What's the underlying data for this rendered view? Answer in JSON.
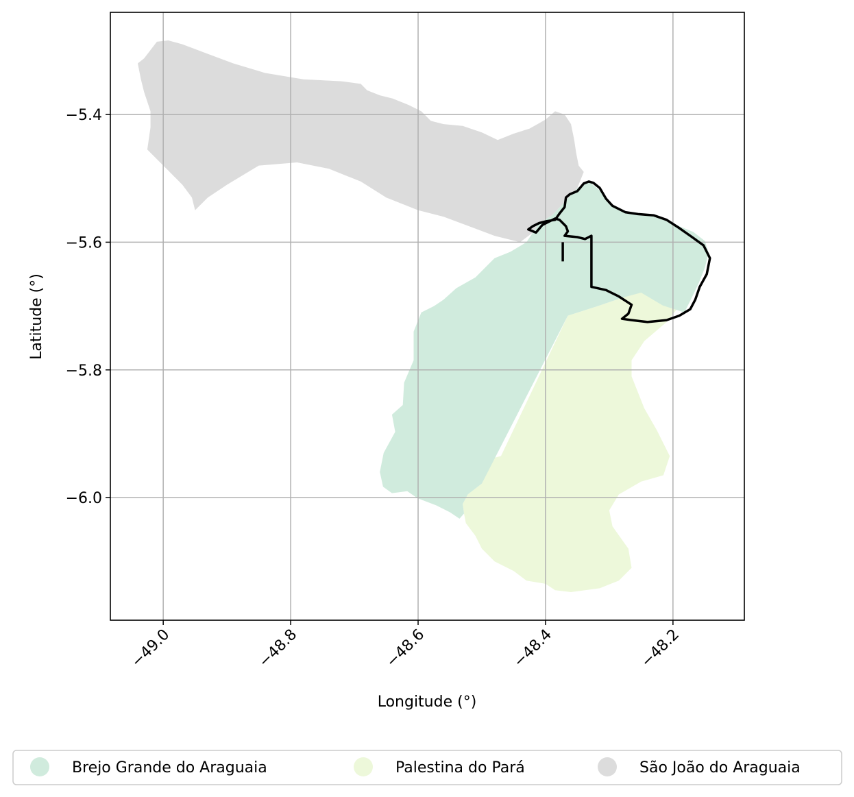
{
  "chart_data": {
    "type": "map",
    "xlabel": "Longitude (°)",
    "ylabel": "Latitude (°)",
    "xlim": [
      -49.083,
      -48.088
    ],
    "ylim": [
      -6.192,
      -5.24
    ],
    "xticks": [
      -49.0,
      -48.8,
      -48.6,
      -48.4,
      -48.2
    ],
    "xtick_labels": [
      "−49.0",
      "−48.8",
      "−48.6",
      "−48.4",
      "−48.2"
    ],
    "yticks": [
      -5.4,
      -5.6,
      -5.8,
      -6.0
    ],
    "ytick_labels": [
      "−5.4",
      "−5.6",
      "−5.8",
      "−6.0"
    ],
    "grid": true,
    "legend_placement": "bottom-center",
    "regions": [
      {
        "name": "Brejo Grande do Araguaia",
        "color": "#d0ebdd",
        "polygon": [
          [
            -48.332,
            -5.505
          ],
          [
            -48.316,
            -5.518
          ],
          [
            -48.303,
            -5.533
          ],
          [
            -48.285,
            -5.549
          ],
          [
            -48.262,
            -5.556
          ],
          [
            -48.238,
            -5.558
          ],
          [
            -48.215,
            -5.565
          ],
          [
            -48.19,
            -5.575
          ],
          [
            -48.168,
            -5.584
          ],
          [
            -48.15,
            -5.598
          ],
          [
            -48.144,
            -5.617
          ],
          [
            -48.15,
            -5.64
          ],
          [
            -48.16,
            -5.665
          ],
          [
            -48.172,
            -5.69
          ],
          [
            -48.182,
            -5.71
          ],
          [
            -48.216,
            -5.699
          ],
          [
            -48.25,
            -5.679
          ],
          [
            -48.28,
            -5.687
          ],
          [
            -48.318,
            -5.7
          ],
          [
            -48.365,
            -5.715
          ],
          [
            -48.5,
            -5.978
          ],
          [
            -48.522,
            -5.995
          ],
          [
            -48.53,
            -6.01
          ],
          [
            -48.528,
            -6.025
          ],
          [
            -48.535,
            -6.033
          ],
          [
            -48.55,
            -6.023
          ],
          [
            -48.572,
            -6.012
          ],
          [
            -48.601,
            -6.001
          ],
          [
            -48.617,
            -5.99
          ],
          [
            -48.641,
            -5.993
          ],
          [
            -48.655,
            -5.983
          ],
          [
            -48.66,
            -5.96
          ],
          [
            -48.654,
            -5.93
          ],
          [
            -48.636,
            -5.897
          ],
          [
            -48.641,
            -5.87
          ],
          [
            -48.624,
            -5.855
          ],
          [
            -48.622,
            -5.82
          ],
          [
            -48.607,
            -5.785
          ],
          [
            -48.607,
            -5.74
          ],
          [
            -48.595,
            -5.71
          ],
          [
            -48.575,
            -5.7
          ],
          [
            -48.56,
            -5.69
          ],
          [
            -48.54,
            -5.672
          ],
          [
            -48.51,
            -5.655
          ],
          [
            -48.495,
            -5.64
          ],
          [
            -48.48,
            -5.625
          ],
          [
            -48.455,
            -5.615
          ],
          [
            -48.43,
            -5.6
          ],
          [
            -48.42,
            -5.585
          ],
          [
            -48.41,
            -5.57
          ],
          [
            -48.39,
            -5.558
          ],
          [
            -48.368,
            -5.535
          ],
          [
            -48.35,
            -5.515
          ]
        ]
      },
      {
        "name": "Palestina do Pará",
        "color": "#edf8da",
        "polygon": [
          [
            -48.365,
            -5.715
          ],
          [
            -48.318,
            -5.7
          ],
          [
            -48.28,
            -5.687
          ],
          [
            -48.248,
            -5.675
          ],
          [
            -48.23,
            -5.68
          ],
          [
            -48.21,
            -5.69
          ],
          [
            -48.19,
            -5.7
          ],
          [
            -48.21,
            -5.725
          ],
          [
            -48.245,
            -5.755
          ],
          [
            -48.265,
            -5.785
          ],
          [
            -48.265,
            -5.81
          ],
          [
            -48.245,
            -5.86
          ],
          [
            -48.225,
            -5.895
          ],
          [
            -48.205,
            -5.935
          ],
          [
            -48.215,
            -5.965
          ],
          [
            -48.25,
            -5.975
          ],
          [
            -48.285,
            -5.995
          ],
          [
            -48.3,
            -6.02
          ],
          [
            -48.295,
            -6.045
          ],
          [
            -48.27,
            -6.08
          ],
          [
            -48.265,
            -6.11
          ],
          [
            -48.285,
            -6.13
          ],
          [
            -48.315,
            -6.142
          ],
          [
            -48.36,
            -6.148
          ],
          [
            -48.385,
            -6.145
          ],
          [
            -48.4,
            -6.135
          ],
          [
            -48.43,
            -6.13
          ],
          [
            -48.45,
            -6.115
          ],
          [
            -48.48,
            -6.1
          ],
          [
            -48.5,
            -6.08
          ],
          [
            -48.51,
            -6.06
          ],
          [
            -48.525,
            -6.04
          ],
          [
            -48.528,
            -6.025
          ],
          [
            -48.53,
            -6.01
          ],
          [
            -48.522,
            -5.995
          ],
          [
            -48.5,
            -5.978
          ],
          [
            -48.493,
            -5.96
          ],
          [
            -48.49,
            -5.94
          ],
          [
            -48.47,
            -5.935
          ]
        ]
      },
      {
        "name": "São João do Araguaia",
        "color": "#dcdcdc",
        "polygon": [
          [
            -49.04,
            -5.32
          ],
          [
            -49.03,
            -5.312
          ],
          [
            -49.01,
            -5.286
          ],
          [
            -48.992,
            -5.284
          ],
          [
            -48.97,
            -5.29
          ],
          [
            -48.93,
            -5.305
          ],
          [
            -48.89,
            -5.32
          ],
          [
            -48.84,
            -5.335
          ],
          [
            -48.78,
            -5.345
          ],
          [
            -48.72,
            -5.348
          ],
          [
            -48.69,
            -5.352
          ],
          [
            -48.68,
            -5.362
          ],
          [
            -48.66,
            -5.37
          ],
          [
            -48.64,
            -5.375
          ],
          [
            -48.615,
            -5.385
          ],
          [
            -48.595,
            -5.395
          ],
          [
            -48.58,
            -5.41
          ],
          [
            -48.56,
            -5.415
          ],
          [
            -48.53,
            -5.418
          ],
          [
            -48.5,
            -5.428
          ],
          [
            -48.475,
            -5.44
          ],
          [
            -48.45,
            -5.43
          ],
          [
            -48.425,
            -5.422
          ],
          [
            -48.4,
            -5.408
          ],
          [
            -48.385,
            -5.395
          ],
          [
            -48.37,
            -5.4
          ],
          [
            -48.36,
            -5.415
          ],
          [
            -48.355,
            -5.44
          ],
          [
            -48.352,
            -5.46
          ],
          [
            -48.348,
            -5.48
          ],
          [
            -48.34,
            -5.49
          ],
          [
            -48.35,
            -5.515
          ],
          [
            -48.368,
            -5.535
          ],
          [
            -48.39,
            -5.558
          ],
          [
            -48.41,
            -5.57
          ],
          [
            -48.42,
            -5.585
          ],
          [
            -48.44,
            -5.6
          ],
          [
            -48.48,
            -5.59
          ],
          [
            -48.52,
            -5.575
          ],
          [
            -48.56,
            -5.56
          ],
          [
            -48.6,
            -5.55
          ],
          [
            -48.65,
            -5.53
          ],
          [
            -48.69,
            -5.505
          ],
          [
            -48.74,
            -5.485
          ],
          [
            -48.79,
            -5.475
          ],
          [
            -48.85,
            -5.48
          ],
          [
            -48.9,
            -5.51
          ],
          [
            -48.93,
            -5.53
          ],
          [
            -48.95,
            -5.55
          ],
          [
            -48.955,
            -5.53
          ],
          [
            -48.97,
            -5.51
          ],
          [
            -48.99,
            -5.49
          ],
          [
            -49.01,
            -5.47
          ],
          [
            -49.025,
            -5.455
          ],
          [
            -49.02,
            -5.42
          ],
          [
            -49.02,
            -5.395
          ],
          [
            -49.03,
            -5.365
          ],
          [
            -49.035,
            -5.345
          ]
        ]
      }
    ],
    "outline": {
      "color": "#000000",
      "polygon": [
        [
          -48.332,
          -5.505
        ],
        [
          -48.34,
          -5.508
        ],
        [
          -48.35,
          -5.52
        ],
        [
          -48.362,
          -5.525
        ],
        [
          -48.368,
          -5.53
        ],
        [
          -48.37,
          -5.545
        ],
        [
          -48.378,
          -5.555
        ],
        [
          -48.385,
          -5.565
        ],
        [
          -48.398,
          -5.567
        ],
        [
          -48.41,
          -5.57
        ],
        [
          -48.42,
          -5.575
        ],
        [
          -48.427,
          -5.58
        ],
        [
          -48.415,
          -5.585
        ],
        [
          -48.405,
          -5.573
        ],
        [
          -48.395,
          -5.568
        ],
        [
          -48.385,
          -5.563
        ],
        [
          -48.378,
          -5.565
        ],
        [
          -48.373,
          -5.57
        ],
        [
          -48.368,
          -5.575
        ],
        [
          -48.365,
          -5.583
        ],
        [
          -48.37,
          -5.59
        ],
        [
          -48.35,
          -5.592
        ],
        [
          -48.338,
          -5.595
        ],
        [
          -48.328,
          -5.59
        ],
        [
          -48.328,
          -5.625
        ],
        [
          -48.328,
          -5.67
        ],
        [
          -48.305,
          -5.675
        ],
        [
          -48.285,
          -5.685
        ],
        [
          -48.265,
          -5.698
        ],
        [
          -48.27,
          -5.712
        ],
        [
          -48.28,
          -5.72
        ],
        [
          -48.265,
          -5.722
        ],
        [
          -48.24,
          -5.725
        ],
        [
          -48.21,
          -5.722
        ],
        [
          -48.19,
          -5.715
        ],
        [
          -48.173,
          -5.705
        ],
        [
          -48.165,
          -5.69
        ],
        [
          -48.158,
          -5.67
        ],
        [
          -48.147,
          -5.65
        ],
        [
          -48.142,
          -5.625
        ],
        [
          -48.152,
          -5.605
        ],
        [
          -48.17,
          -5.592
        ],
        [
          -48.19,
          -5.578
        ],
        [
          -48.21,
          -5.565
        ],
        [
          -48.23,
          -5.558
        ],
        [
          -48.255,
          -5.556
        ],
        [
          -48.275,
          -5.553
        ],
        [
          -48.295,
          -5.543
        ],
        [
          -48.305,
          -5.532
        ],
        [
          -48.315,
          -5.515
        ],
        [
          -48.325,
          -5.507
        ]
      ],
      "spur": [
        [
          -48.373,
          -5.6
        ],
        [
          -48.373,
          -5.63
        ]
      ]
    }
  },
  "legend": {
    "items": [
      {
        "label": "Brejo Grande do Araguaia",
        "color": "#d0ebdd"
      },
      {
        "label": "Palestina do Pará",
        "color": "#edf8da"
      },
      {
        "label": "São João do Araguaia",
        "color": "#dcdcdc"
      }
    ]
  }
}
